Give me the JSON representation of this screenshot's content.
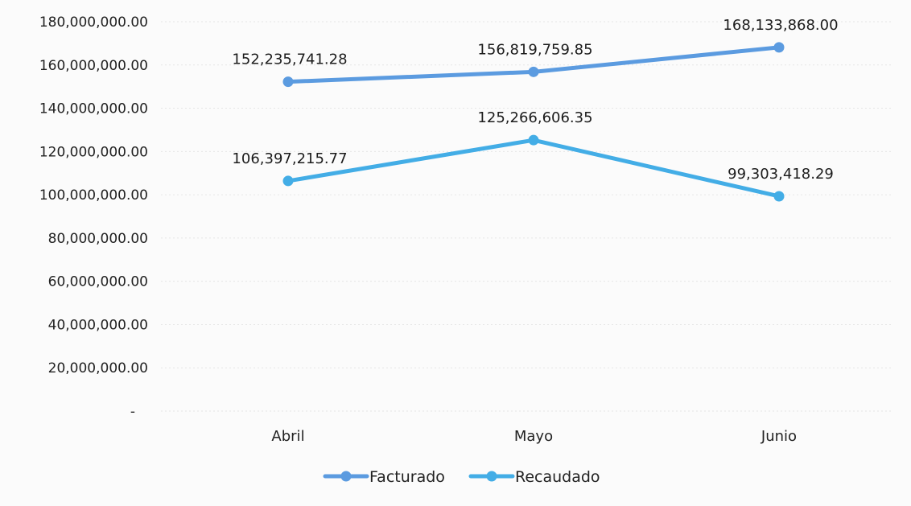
{
  "chart_data": {
    "type": "line",
    "categories": [
      "Abril",
      "Mayo",
      "Junio"
    ],
    "series": [
      {
        "name": "Facturado",
        "color": "#5b9be0",
        "values": [
          152235741.28,
          156819759.85,
          168133868.0
        ],
        "labels": [
          "152,235,741.28",
          "156,819,759.85",
          "168,133,868.00"
        ]
      },
      {
        "name": "Recaudado",
        "color": "#43ade6",
        "values": [
          106397215.77,
          125266606.35,
          99303418.29
        ],
        "labels": [
          "106,397,215.77",
          "125,266,606.35",
          "99,303,418.29"
        ]
      }
    ],
    "ylim": [
      0,
      180000000
    ],
    "yticks": [
      0,
      20000000,
      40000000,
      60000000,
      80000000,
      100000000,
      120000000,
      140000000,
      160000000,
      180000000
    ],
    "ytick_labels": [
      "-",
      "20,000,000.00",
      "40,000,000.00",
      "60,000,000.00",
      "80,000,000.00",
      "100,000,000.00",
      "120,000,000.00",
      "140,000,000.00",
      "160,000,000.00",
      "180,000,000.00"
    ],
    "grid": true,
    "legend": "bottom",
    "title": "",
    "xlabel": "",
    "ylabel": ""
  }
}
